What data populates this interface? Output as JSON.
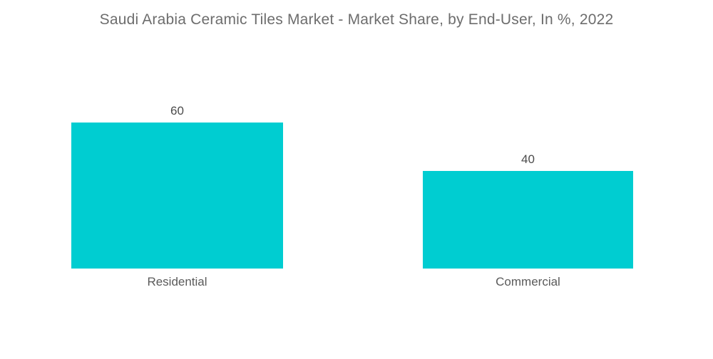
{
  "chart_data": {
    "type": "bar",
    "title": "Saudi Arabia Ceramic Tiles Market - Market Share, by End-User, In %, 2022",
    "categories": [
      "Residential",
      "Commercial"
    ],
    "values": [
      60,
      40
    ],
    "unit": "%",
    "xlabel": "",
    "ylabel": "",
    "ylim": [
      0,
      60
    ],
    "grid": false,
    "legend_position": "none",
    "colors": {
      "bar_fill": "#00CDD1",
      "title_text": "#6d6d6d",
      "value_text": "#4b4b4b",
      "category_text": "#5a5a5a",
      "background": "#ffffff"
    }
  }
}
